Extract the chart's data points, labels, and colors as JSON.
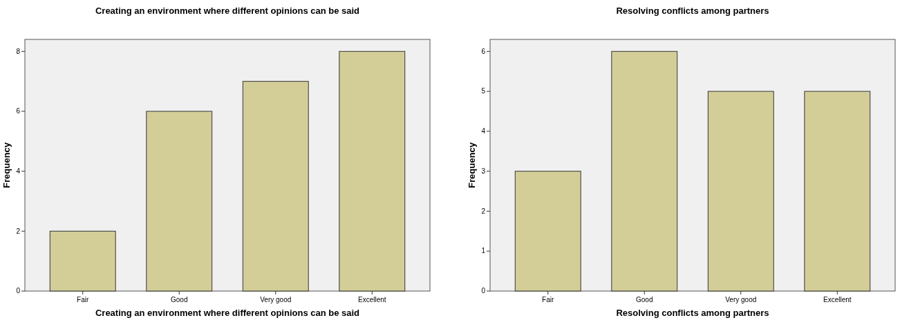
{
  "chart_data": [
    {
      "type": "bar",
      "title": "Creating an environment where different opinions can be said",
      "xlabel": "Creating an environment where different opinions can be said",
      "ylabel": "Frequency",
      "categories": [
        "Fair",
        "Good",
        "Very good",
        "Excellent"
      ],
      "values": [
        2,
        6,
        7,
        8
      ],
      "color": "#d3ce97",
      "ylim": [
        0,
        8.4
      ],
      "yticks": [
        0,
        2,
        4,
        6,
        8
      ]
    },
    {
      "type": "bar",
      "title": "Resolving conflicts among partners",
      "xlabel": "Resolving conflicts among partners",
      "ylabel": "Frequency",
      "categories": [
        "Fair",
        "Good",
        "Very good",
        "Excellent"
      ],
      "values": [
        3,
        6,
        5,
        5
      ],
      "color": "#d3ce97",
      "ylim": [
        0,
        6.3
      ],
      "yticks": [
        0,
        1,
        2,
        3,
        4,
        5,
        6
      ]
    }
  ]
}
